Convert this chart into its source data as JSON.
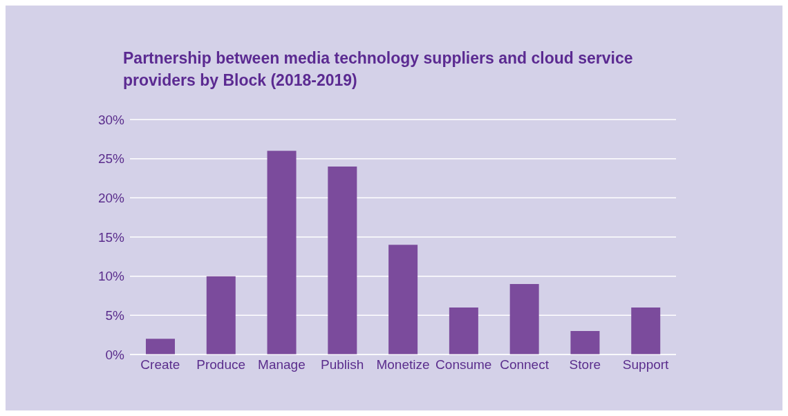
{
  "chart_data": {
    "type": "bar",
    "title": "Partnership between media technology suppliers and cloud service providers by Block (2018-2019)",
    "categories": [
      "Create",
      "Produce",
      "Manage",
      "Publish",
      "Monetize",
      "Consume",
      "Connect",
      "Store",
      "Support"
    ],
    "values": [
      2,
      10,
      26,
      24,
      14,
      6,
      9,
      3,
      6
    ],
    "color": "#7b4b9c",
    "ylim": [
      0,
      30
    ],
    "yticks": [
      {
        "value": 0,
        "label": "0%"
      },
      {
        "value": 5,
        "label": "5%"
      },
      {
        "value": 10,
        "label": "10%"
      },
      {
        "value": 15,
        "label": "15%"
      },
      {
        "value": 20,
        "label": "20%"
      },
      {
        "value": 25,
        "label": "25%"
      },
      {
        "value": 30,
        "label": "30%"
      }
    ],
    "grid": "y"
  }
}
